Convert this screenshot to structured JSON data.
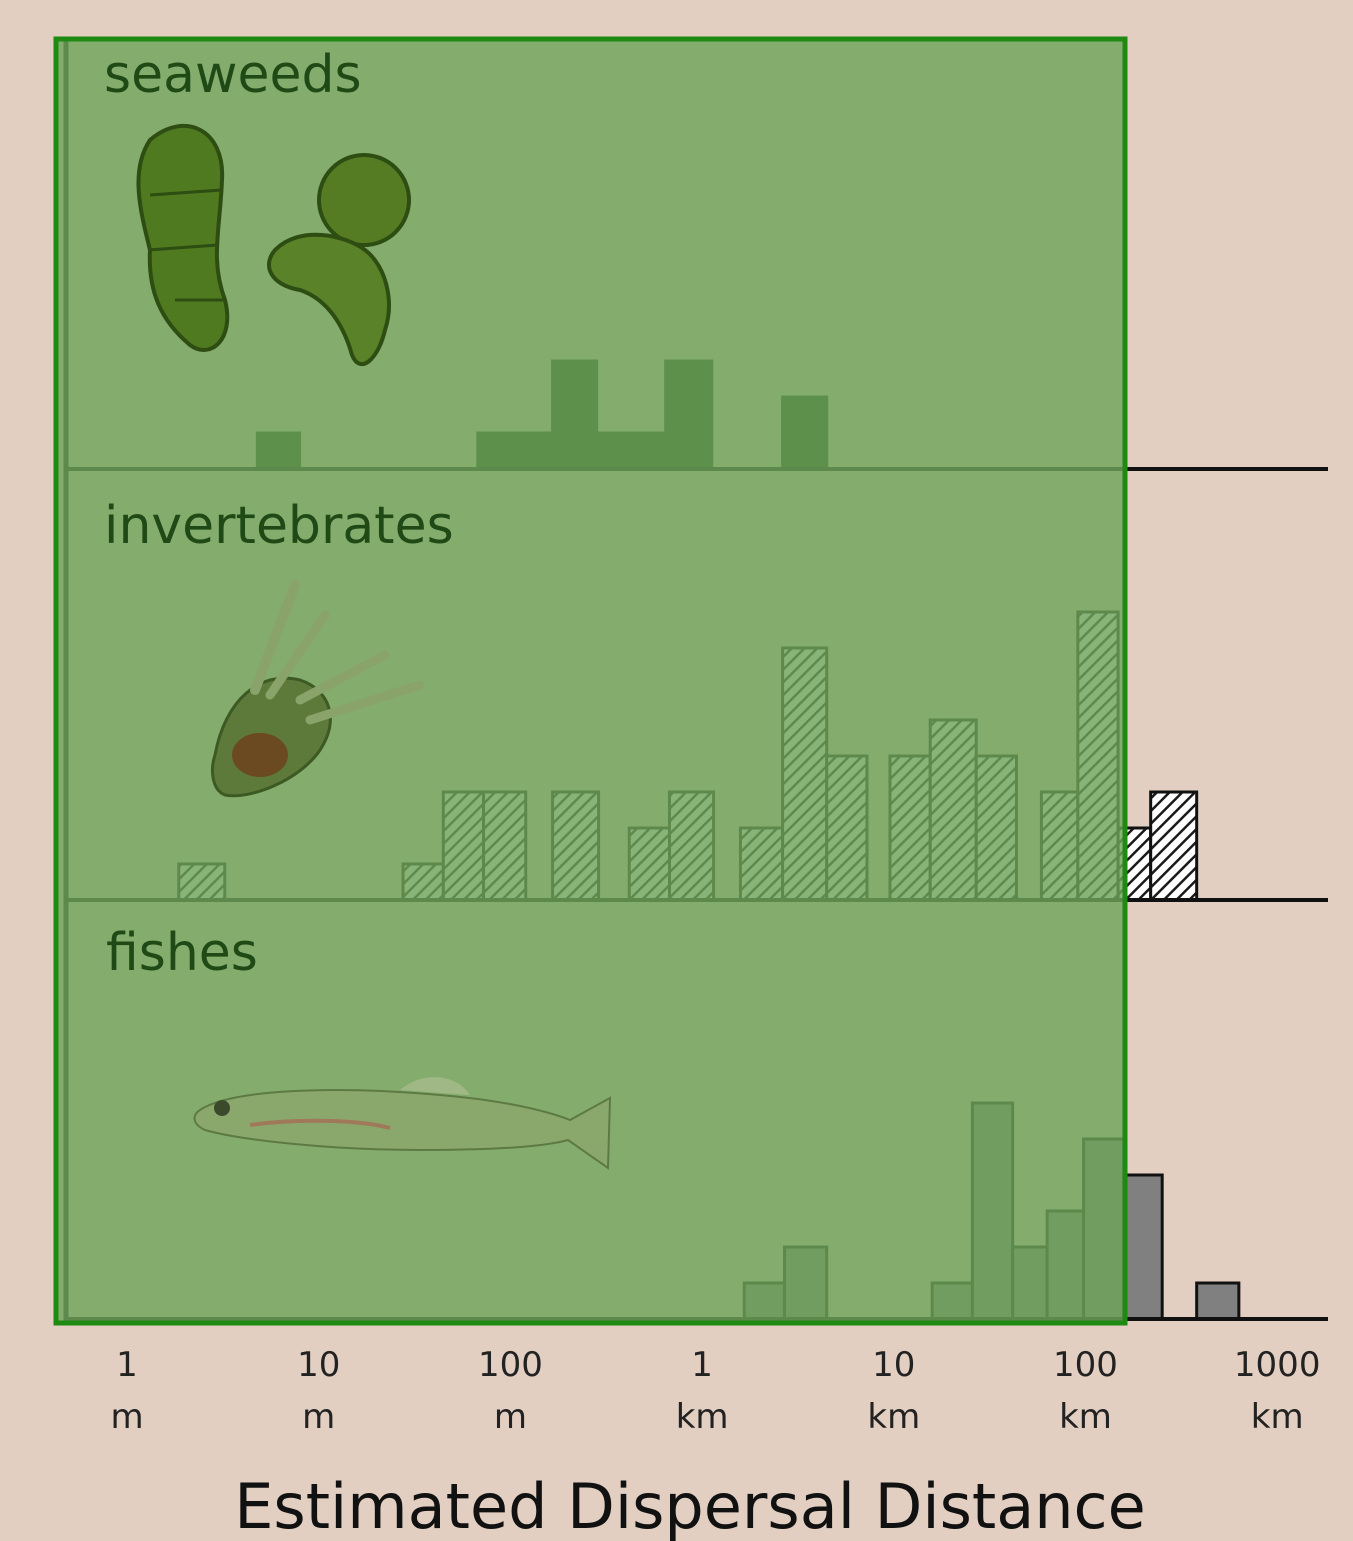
{
  "chart_data": {
    "type": "bar",
    "x_scale": "log10",
    "x_unit": "m",
    "xlim": [
      0.7,
      1400000
    ],
    "xlabel": "Estimated Dispersal Distance",
    "x_ticks": [
      {
        "value": 1,
        "line1": "1",
        "line2": "m"
      },
      {
        "value": 10,
        "line1": "10",
        "line2": "m"
      },
      {
        "value": 100,
        "line1": "100",
        "line2": "m"
      },
      {
        "value": 1000,
        "line1": "1",
        "line2": "km"
      },
      {
        "value": 10000,
        "line1": "10",
        "line2": "km"
      },
      {
        "value": 100000,
        "line1": "100",
        "line2": "km"
      },
      {
        "value": 1000000,
        "line1": "1000",
        "line2": "km"
      }
    ],
    "panels": [
      {
        "name": "seaweeds",
        "style": "solid-dark",
        "bars": [
          {
            "log_from": 0.68,
            "log_to": 0.9,
            "count": 1
          },
          {
            "log_from": 1.83,
            "log_to": 2.22,
            "count": 1
          },
          {
            "log_from": 2.22,
            "log_to": 2.45,
            "count": 3
          },
          {
            "log_from": 2.45,
            "log_to": 2.81,
            "count": 1
          },
          {
            "log_from": 2.81,
            "log_to": 3.05,
            "count": 3
          },
          {
            "log_from": 3.42,
            "log_to": 3.65,
            "count": 2
          }
        ]
      },
      {
        "name": "invertebrates",
        "style": "hatched",
        "bars": [
          {
            "log_from": 0.27,
            "log_to": 0.51,
            "count": 1
          },
          {
            "log_from": 1.44,
            "log_to": 1.65,
            "count": 1
          },
          {
            "log_from": 1.65,
            "log_to": 1.86,
            "count": 3
          },
          {
            "log_from": 1.86,
            "log_to": 2.08,
            "count": 3
          },
          {
            "log_from": 2.22,
            "log_to": 2.46,
            "count": 3
          },
          {
            "log_from": 2.62,
            "log_to": 2.83,
            "count": 2
          },
          {
            "log_from": 2.83,
            "log_to": 3.06,
            "count": 3
          },
          {
            "log_from": 3.2,
            "log_to": 3.42,
            "count": 2
          },
          {
            "log_from": 3.42,
            "log_to": 3.65,
            "count": 7
          },
          {
            "log_from": 3.65,
            "log_to": 3.86,
            "count": 4
          },
          {
            "log_from": 3.98,
            "log_to": 4.19,
            "count": 4
          },
          {
            "log_from": 4.19,
            "log_to": 4.43,
            "count": 5
          },
          {
            "log_from": 4.43,
            "log_to": 4.64,
            "count": 4
          },
          {
            "log_from": 4.77,
            "log_to": 4.96,
            "count": 3
          },
          {
            "log_from": 4.96,
            "log_to": 5.17,
            "count": 8
          },
          {
            "log_from": 5.17,
            "log_to": 5.34,
            "count": 2
          },
          {
            "log_from": 5.34,
            "log_to": 5.58,
            "count": 3
          }
        ]
      },
      {
        "name": "fishes",
        "style": "solid-medium",
        "bars": [
          {
            "log_from": 3.22,
            "log_to": 3.43,
            "count": 1
          },
          {
            "log_from": 3.43,
            "log_to": 3.65,
            "count": 2
          },
          {
            "log_from": 4.2,
            "log_to": 4.41,
            "count": 1
          },
          {
            "log_from": 4.41,
            "log_to": 4.62,
            "count": 6
          },
          {
            "log_from": 4.62,
            "log_to": 4.8,
            "count": 2
          },
          {
            "log_from": 4.8,
            "log_to": 4.99,
            "count": 3
          },
          {
            "log_from": 4.99,
            "log_to": 5.2,
            "count": 5
          },
          {
            "log_from": 5.2,
            "log_to": 5.4,
            "count": 4
          },
          {
            "log_from": 5.58,
            "log_to": 5.8,
            "count": 1
          }
        ]
      }
    ]
  },
  "overlay": {
    "fill": "#6fa35a",
    "border": "#1e8a12"
  }
}
